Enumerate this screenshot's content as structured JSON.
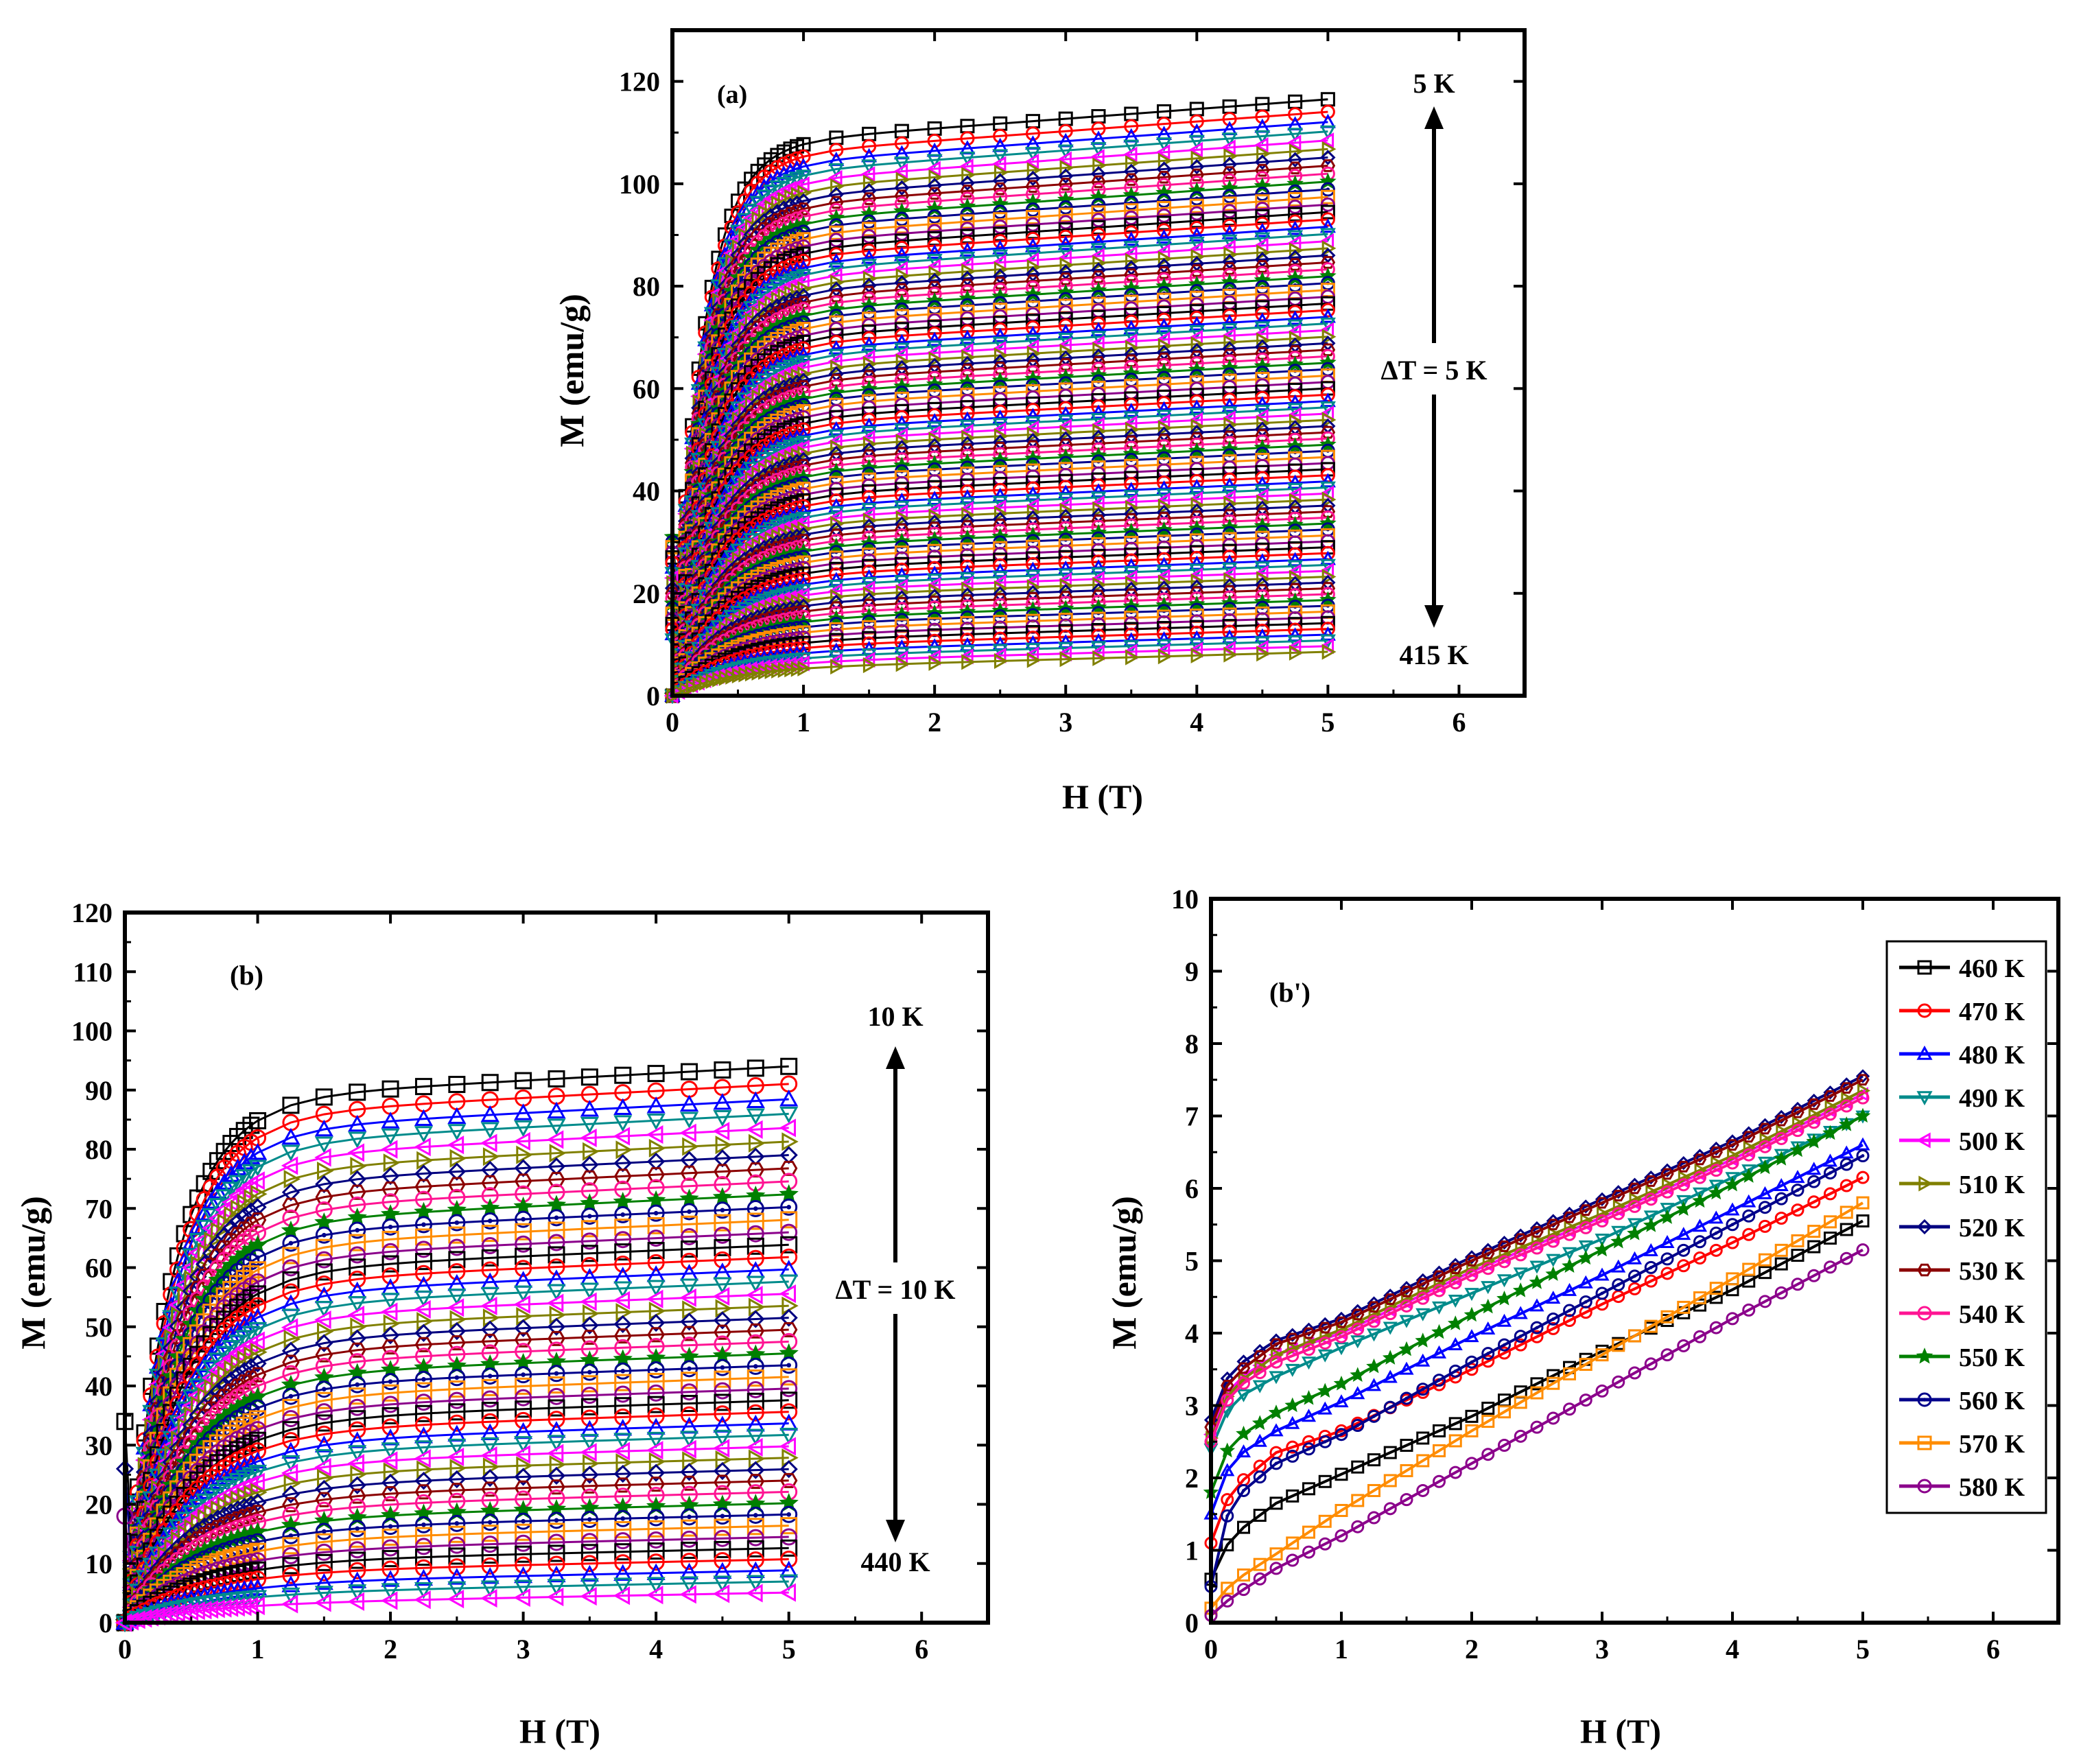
{
  "chart_data": [
    {
      "id": "a",
      "type": "line",
      "panel_label": "(a)",
      "xlabel": "H (T)",
      "ylabel": "M (emu/g)",
      "xlim": [
        0,
        6.5
      ],
      "ylim": [
        0,
        130
      ],
      "xticks": [
        0,
        1,
        2,
        3,
        4,
        5,
        6
      ],
      "yticks": [
        0,
        20,
        40,
        60,
        80,
        100,
        120
      ],
      "annotations": {
        "top": "5 K",
        "middle": "ΔT = 5 K",
        "bottom": "415 K"
      },
      "curve_model": {
        "x_max": 5,
        "count": 84,
        "ms_low_field_T": 5,
        "ms_low": 107,
        "ms_high_field_T": 415,
        "ms_high": 5,
        "final_value_at_5T_first": 116.5
      }
    },
    {
      "id": "b",
      "type": "line",
      "panel_label": "(b)",
      "xlabel": "H (T)",
      "ylabel": "M (emu/g)",
      "xlim": [
        0,
        6.5
      ],
      "ylim": [
        0,
        120
      ],
      "xticks": [
        0,
        1,
        2,
        3,
        4,
        5,
        6
      ],
      "yticks": [
        0,
        10,
        20,
        30,
        40,
        50,
        60,
        70,
        80,
        90,
        100,
        110,
        120
      ],
      "annotations": {
        "top": "10 K",
        "middle": "ΔT = 10 K",
        "bottom": "440 K"
      },
      "curve_model": {
        "x_max": 5,
        "count": 44,
        "ms_first": 94,
        "ms_last": 5
      }
    },
    {
      "id": "b'",
      "type": "line",
      "panel_label": "(b')",
      "xlabel": "H (T)",
      "ylabel": "M (emu/g)",
      "xlim": [
        0,
        6.5
      ],
      "ylim": [
        0,
        10
      ],
      "xticks": [
        0,
        1,
        2,
        3,
        4,
        5,
        6
      ],
      "yticks": [
        0,
        1,
        2,
        3,
        4,
        5,
        6,
        7,
        8,
        9,
        10
      ],
      "x": [
        0,
        0.05,
        0.2,
        0.5,
        1,
        2,
        3,
        4,
        5
      ],
      "series": [
        {
          "name": "460 K",
          "color": "#000000",
          "marker": "square",
          "values": [
            0.6,
            0.9,
            1.25,
            1.65,
            2.05,
            2.85,
            3.75,
            4.6,
            5.55
          ]
        },
        {
          "name": "470 K",
          "color": "#ff0000",
          "marker": "circle",
          "values": [
            1.1,
            1.5,
            1.9,
            2.35,
            2.65,
            3.5,
            4.4,
            5.25,
            6.15
          ]
        },
        {
          "name": "480 K",
          "color": "#0000ff",
          "marker": "triangle-up",
          "values": [
            1.5,
            1.9,
            2.3,
            2.65,
            3.05,
            3.95,
            4.8,
            5.7,
            6.6
          ]
        },
        {
          "name": "490 K",
          "color": "#008b8b",
          "marker": "triangle-down",
          "values": [
            2.4,
            2.75,
            3.1,
            3.4,
            3.8,
            4.55,
            5.3,
            6.15,
            7.0
          ]
        },
        {
          "name": "500 K",
          "color": "#ff00ff",
          "marker": "triangle-left",
          "values": [
            2.6,
            3.0,
            3.35,
            3.7,
            4.0,
            4.85,
            5.6,
            6.4,
            7.3
          ]
        },
        {
          "name": "510 K",
          "color": "#808000",
          "marker": "triangle-right",
          "values": [
            2.55,
            2.95,
            3.3,
            3.7,
            4.05,
            4.9,
            5.65,
            6.45,
            7.35
          ]
        },
        {
          "name": "520 K",
          "color": "#000080",
          "marker": "diamond",
          "values": [
            2.8,
            3.2,
            3.55,
            3.9,
            4.2,
            5.05,
            5.85,
            6.65,
            7.55
          ]
        },
        {
          "name": "530 K",
          "color": "#8b0000",
          "marker": "hexagon",
          "values": [
            2.7,
            3.1,
            3.45,
            3.85,
            4.15,
            5.0,
            5.8,
            6.6,
            7.5
          ]
        },
        {
          "name": "540 K",
          "color": "#ff1493",
          "marker": "circle",
          "values": [
            2.5,
            2.9,
            3.25,
            3.6,
            3.95,
            4.8,
            5.55,
            6.35,
            7.25
          ]
        },
        {
          "name": "550 K",
          "color": "#008000",
          "marker": "star",
          "values": [
            1.8,
            2.2,
            2.55,
            2.9,
            3.3,
            4.25,
            5.15,
            6.05,
            7.0
          ]
        },
        {
          "name": "560 K",
          "color": "#00008b",
          "marker": "circle-dot",
          "values": [
            0.5,
            1.2,
            1.75,
            2.2,
            2.6,
            3.6,
            4.55,
            5.5,
            6.45
          ]
        },
        {
          "name": "570 K",
          "color": "#ff8c00",
          "marker": "square",
          "values": [
            0.2,
            0.35,
            0.6,
            0.95,
            1.55,
            2.65,
            3.7,
            4.75,
            5.8
          ]
        },
        {
          "name": "580 K",
          "color": "#8b008b",
          "marker": "circle",
          "values": [
            0.1,
            0.2,
            0.4,
            0.75,
            1.2,
            2.2,
            3.2,
            4.2,
            5.15
          ]
        }
      ]
    }
  ],
  "palette": [
    "#000000",
    "#ff0000",
    "#0000ff",
    "#008b8b",
    "#ff00ff",
    "#808000",
    "#000080",
    "#8b0000",
    "#ff1493",
    "#008000",
    "#00008b",
    "#ff8c00",
    "#8b008b"
  ],
  "marker_types": [
    "square",
    "circle",
    "triangle-up",
    "triangle-down",
    "triangle-left",
    "triangle-right",
    "diamond",
    "hexagon",
    "circle",
    "star",
    "circle-dot",
    "square",
    "circle"
  ]
}
